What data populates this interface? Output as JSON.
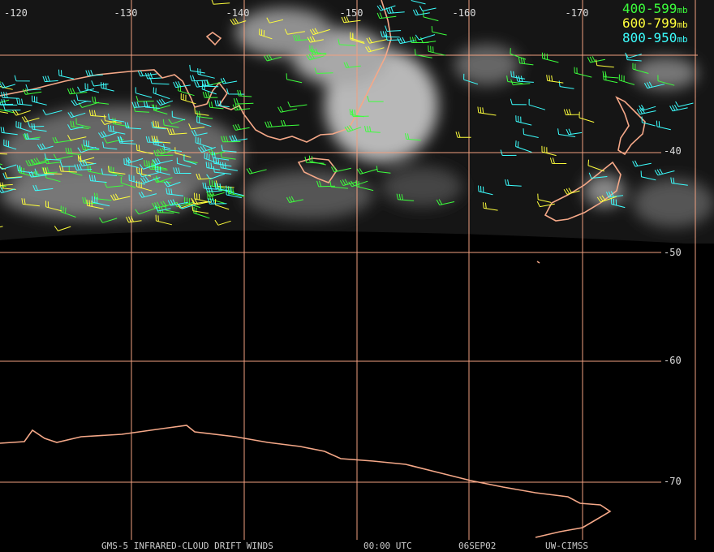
{
  "longitude_labels": [
    "-120",
    "-130",
    "-140",
    "-150",
    "-160",
    "-170"
  ],
  "latitude_labels": [
    "-40",
    "-50",
    "-60",
    "-70"
  ],
  "legend": [
    {
      "label": "400-599",
      "unit": "mb",
      "color": "#3cff3c"
    },
    {
      "label": "600-799",
      "unit": "mb",
      "color": "#ffff3c"
    },
    {
      "label": "800-950",
      "unit": "mb",
      "color": "#3cffff"
    }
  ],
  "footer": {
    "product": "GMS-5 INFRARED-CLOUD DRIFT WINDS",
    "time": "00:00 UTC",
    "date": "06SEP02",
    "source": "UW-CIMSS"
  }
}
